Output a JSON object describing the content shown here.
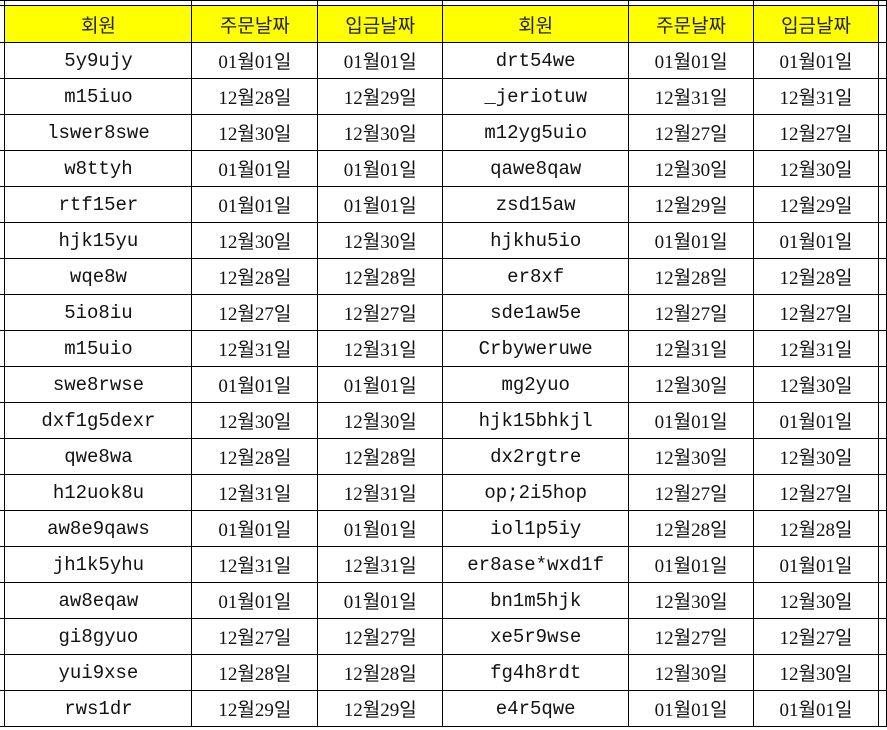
{
  "header_color": "#ffff00",
  "headers": [
    "회원",
    "주문날짜",
    "입금날짜",
    "회원",
    "주문날짜",
    "입금날짜"
  ],
  "rows": [
    [
      "5y9ujy",
      "01월01일",
      "01월01일",
      "drt54we",
      "01월01일",
      "01월01일"
    ],
    [
      "m15iuo",
      "12월28일",
      "12월29일",
      "_jeriotuw",
      "12월31일",
      "12월31일"
    ],
    [
      "lswer8swe",
      "12월30일",
      "12월30일",
      "m12yg5uio",
      "12월27일",
      "12월27일"
    ],
    [
      "w8ttyh",
      "01월01일",
      "01월01일",
      "qawe8qaw",
      "12월30일",
      "12월30일"
    ],
    [
      "rtf15er",
      "01월01일",
      "01월01일",
      "zsd15aw",
      "12월29일",
      "12월29일"
    ],
    [
      "hjk15yu",
      "12월30일",
      "12월30일",
      "hjkhu5io",
      "01월01일",
      "01월01일"
    ],
    [
      "wqe8w",
      "12월28일",
      "12월28일",
      "er8xf",
      "12월28일",
      "12월28일"
    ],
    [
      "5io8iu",
      "12월27일",
      "12월27일",
      "sde1aw5e",
      "12월27일",
      "12월27일"
    ],
    [
      "m15uio",
      "12월31일",
      "12월31일",
      "Crbyweruwe",
      "12월31일",
      "12월31일"
    ],
    [
      "swe8rwse",
      "01월01일",
      "01월01일",
      "mg2yuo",
      "12월30일",
      "12월30일"
    ],
    [
      "dxf1g5dexr",
      "12월30일",
      "12월30일",
      "hjk15bhkjl",
      "01월01일",
      "01월01일"
    ],
    [
      "qwe8wa",
      "12월28일",
      "12월28일",
      "dx2rgtre",
      "12월30일",
      "12월30일"
    ],
    [
      "h12uok8u",
      "12월31일",
      "12월31일",
      "op;2i5hop",
      "12월27일",
      "12월27일"
    ],
    [
      "aw8e9qaws",
      "01월01일",
      "01월01일",
      "iol1p5iy",
      "12월28일",
      "12월28일"
    ],
    [
      "jh1k5yhu",
      "12월31일",
      "12월31일",
      "er8ase*wxd1f",
      "01월01일",
      "01월01일"
    ],
    [
      "aw8eqaw",
      "01월01일",
      "01월01일",
      "bn1m5hjk",
      "12월30일",
      "12월30일"
    ],
    [
      "gi8gyuo",
      "12월27일",
      "12월27일",
      "xe5r9wse",
      "12월27일",
      "12월27일"
    ],
    [
      "yui9xse",
      "12월28일",
      "12월28일",
      "fg4h8rdt",
      "12월30일",
      "12월30일"
    ],
    [
      "rws1dr",
      "12월29일",
      "12월29일",
      "e4r5qwe",
      "01월01일",
      "01월01일"
    ]
  ]
}
